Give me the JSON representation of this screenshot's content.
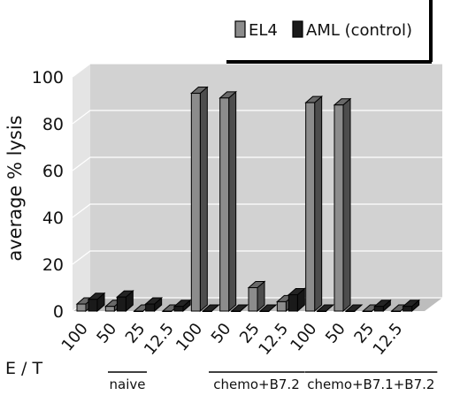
{
  "chart_data": {
    "type": "bar",
    "ylabel": "average % lysis",
    "xlabel": "E / T",
    "ylim": [
      0,
      100
    ],
    "yticks": [
      "0",
      "20",
      "40",
      "60",
      "80",
      "100"
    ],
    "categories": [
      "100",
      "50",
      "25",
      "12.5",
      "100",
      "50",
      "25",
      "12.5",
      "100",
      "50",
      "25",
      "12.5"
    ],
    "groups": [
      {
        "label": "naive",
        "categories": [
          "100",
          "50",
          "25",
          "12.5"
        ]
      },
      {
        "label": "chemo+B7.2",
        "categories": [
          "100",
          "50",
          "25",
          "12.5"
        ]
      },
      {
        "label": "chemo+B7.1+B7.2",
        "categories": [
          "100",
          "50",
          "25",
          "12.5"
        ]
      }
    ],
    "series": [
      {
        "name": "EL4",
        "color": "#8c8c8c",
        "values": [
          3,
          2,
          0,
          0,
          93,
          91,
          10,
          4,
          89,
          88,
          0,
          0
        ]
      },
      {
        "name": "AML (control)",
        "color": "#1a1a1a",
        "values": [
          5,
          6,
          3,
          2,
          0,
          0,
          0,
          7,
          0,
          0,
          2,
          2
        ]
      }
    ],
    "grid": true,
    "legend_position": "top-right"
  }
}
